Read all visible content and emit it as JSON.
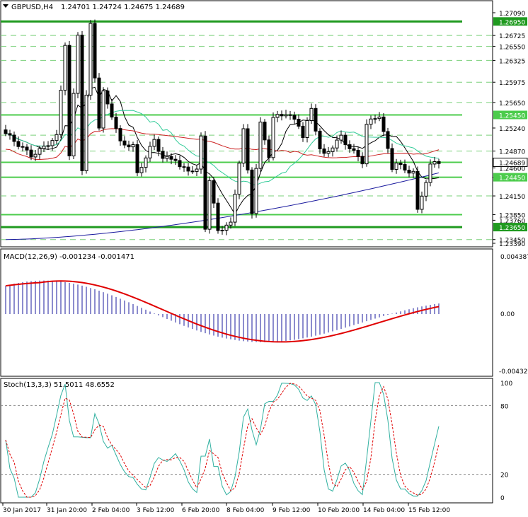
{
  "header": {
    "symbol": "GBPUSD,H4",
    "ohlc": "1.24701 1.24724 1.24675 1.24689"
  },
  "price_axis": {
    "ticks": [
      "1.27090",
      "1.26725",
      "1.26550",
      "1.26325",
      "1.25975",
      "1.25650",
      "1.25240",
      "1.24870",
      "1.24600",
      "1.24450",
      "1.24150",
      "1.23850",
      "1.23760",
      "1.23450",
      "1.23390"
    ],
    "highlighted": [
      "1.26950",
      "1.25450",
      "1.24689",
      "1.24450",
      "1.23650"
    ],
    "current_label": "1.24689"
  },
  "levels": [
    {
      "price": "1.26950",
      "type": "major"
    },
    {
      "price": "1.25450",
      "type": "minor"
    },
    {
      "price": "1.24689",
      "type": "minor"
    },
    {
      "price": "1.24450",
      "type": "minor"
    },
    {
      "price": "1.23850",
      "type": "minor"
    },
    {
      "price": "1.23650",
      "type": "major"
    }
  ],
  "macd": {
    "label": "MACD(12,26,9) -0.001234 -0.001471",
    "top": "0.004387",
    "zero": "0.00",
    "bottom": "-0.004329"
  },
  "stoch": {
    "label": "Stoch(13,3,3) 51.5011 48.6552",
    "ticks": [
      "100",
      "80",
      "20",
      "0"
    ]
  },
  "time_axis": [
    "30 Jan 2017",
    "31 Jan 20:00",
    "2 Feb 04:00",
    "3 Feb 12:00",
    "6 Feb 20:00",
    "8 Feb 04:00",
    "9 Feb 12:00",
    "10 Feb 20:00",
    "14 Feb 04:00",
    "15 Feb 12:00"
  ],
  "colors": {
    "bull": "#ffffff",
    "bear": "#000000",
    "level_major": "#1f9a1f",
    "level_minor": "#4ccc4c",
    "ma_fast": "#000000",
    "ma_mid": "#33cc99",
    "ma_slow_red": "#cc2222",
    "ma_slow_blue": "#1a1a9e",
    "macd_hist": "#1a1a9e",
    "macd_signal": "#e00000",
    "stoch_main": "#30b0a0",
    "stoch_signal": "#e00000"
  },
  "chart_data": {
    "type": "line",
    "series": [
      {
        "name": "GBPUSD,H4",
        "values": []
      }
    ]
  }
}
